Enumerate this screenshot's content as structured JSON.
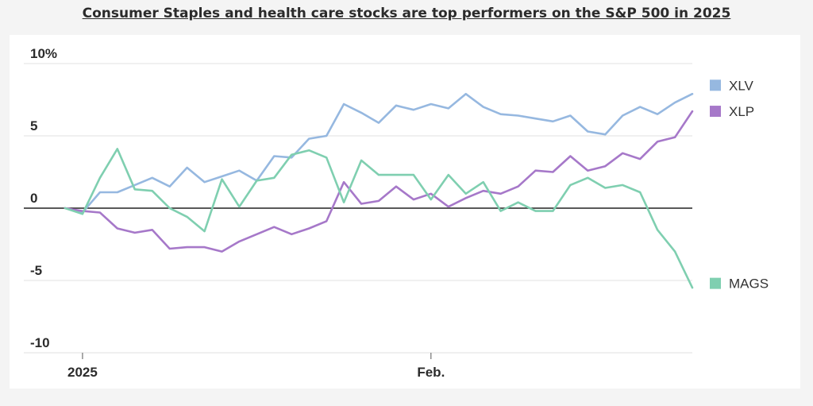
{
  "page": {
    "title": "Consumer Staples and health care stocks are top performers on the S&P 500 in 2025"
  },
  "chart_data": {
    "type": "line",
    "title": "Consumer Staples and health care stocks are top performers on the S&P 500 in 2025",
    "xlabel": "",
    "ylabel": "",
    "ylim": [
      -10,
      10
    ],
    "yticks": [
      10,
      5,
      0,
      -5,
      -10
    ],
    "ytick_labels": [
      "10%",
      "5",
      "0",
      "-5",
      "-10"
    ],
    "xticks": [
      {
        "label": "2025",
        "index": 1
      },
      {
        "label": "Feb.",
        "index": 21
      }
    ],
    "grid": true,
    "legend_placement": "right",
    "series": [
      {
        "name": "XLV",
        "color": "#96b8e0",
        "values": [
          0,
          -0.3,
          1.1,
          1.1,
          1.6,
          2.1,
          1.5,
          2.8,
          1.8,
          2.2,
          2.6,
          1.9,
          3.6,
          3.5,
          4.8,
          5.0,
          7.2,
          6.6,
          5.9,
          7.1,
          6.8,
          7.2,
          6.9,
          7.9,
          7.0,
          6.5,
          6.4,
          6.2,
          6.0,
          6.4,
          5.3,
          5.1,
          6.4,
          7.0,
          6.5,
          7.3,
          7.9
        ]
      },
      {
        "name": "XLP",
        "color": "#a678c9",
        "values": [
          0,
          -0.2,
          -0.3,
          -1.4,
          -1.7,
          -1.5,
          -2.8,
          -2.7,
          -2.7,
          -3.0,
          -2.3,
          -1.8,
          -1.3,
          -1.8,
          -1.4,
          -0.9,
          1.8,
          0.3,
          0.5,
          1.5,
          0.6,
          1.0,
          0.1,
          0.7,
          1.2,
          1.0,
          1.5,
          2.6,
          2.5,
          3.6,
          2.6,
          2.9,
          3.8,
          3.4,
          4.6,
          4.9,
          6.7
        ]
      },
      {
        "name": "MAGS",
        "color": "#7fcfb0",
        "values": [
          0,
          -0.4,
          2.1,
          4.1,
          1.3,
          1.2,
          0,
          -0.6,
          -1.6,
          2.0,
          0.1,
          1.9,
          2.1,
          3.7,
          4.0,
          3.5,
          0.4,
          3.3,
          2.3,
          2.3,
          2.3,
          0.6,
          2.3,
          1.0,
          1.8,
          -0.2,
          0.4,
          -0.2,
          -0.2,
          1.6,
          2.1,
          1.4,
          1.6,
          1.1,
          -1.5,
          -3.0,
          -5.5
        ]
      }
    ]
  }
}
